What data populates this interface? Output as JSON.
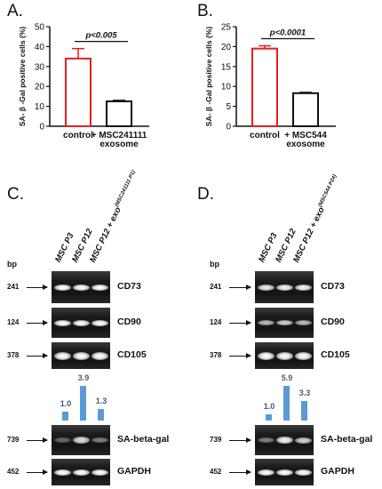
{
  "panels": {
    "a": {
      "label": "A.",
      "pvalue": "p<0.005",
      "ylabel": "SA- β -Gal positive cells (%)",
      "chart_data": {
        "type": "bar",
        "categories": [
          "control",
          "+ MSC241111 exosome"
        ],
        "category_lines": [
          [
            "control"
          ],
          [
            "+ MSC241111",
            "exosome"
          ]
        ],
        "values": [
          34,
          12.5
        ],
        "error_upper": [
          39,
          13
        ],
        "ylim": [
          0,
          50
        ],
        "yticks": [
          0,
          10,
          20,
          30,
          40,
          50
        ],
        "bar_edges": [
          "#e02020",
          "#111111"
        ]
      }
    },
    "b": {
      "label": "B.",
      "pvalue": "p<0.0001",
      "ylabel": "SA- β -Gal positive cells (%)",
      "chart_data": {
        "type": "bar",
        "categories": [
          "control",
          "+ MSC544 exosome"
        ],
        "category_lines": [
          [
            "control"
          ],
          [
            "+ MSC544",
            "exosome"
          ]
        ],
        "values": [
          19.5,
          8.3
        ],
        "error_upper": [
          20.2,
          8.5
        ],
        "ylim": [
          0,
          25
        ],
        "yticks": [
          0,
          5,
          10,
          15,
          20,
          25
        ],
        "bar_edges": [
          "#e02020",
          "#111111"
        ]
      }
    },
    "c": {
      "label": "C.",
      "bp_label": "bp",
      "lanes": [
        {
          "text": "MSC P3",
          "sup": ""
        },
        {
          "text": "MSC P12",
          "sup": ""
        },
        {
          "text": "MSC P12 + exo",
          "sup": "(MSC241111 P1)"
        }
      ],
      "markers": [
        "241",
        "124",
        "378",
        "739",
        "452"
      ],
      "genes": [
        "CD73",
        "CD90",
        "CD105",
        "SA-beta-gal",
        "GAPDH"
      ],
      "quant": {
        "type": "bar",
        "labels": [
          "1.0",
          "3.9",
          "1.3"
        ],
        "values": [
          1.0,
          3.9,
          1.3
        ]
      }
    },
    "d": {
      "label": "D.",
      "bp_label": "bp",
      "lanes": [
        {
          "text": "MSC P3",
          "sup": ""
        },
        {
          "text": "MSC P12",
          "sup": ""
        },
        {
          "text": "MSC P12 + exo",
          "sup": "(MSC544 P24)"
        }
      ],
      "markers": [
        "241",
        "124",
        "378",
        "739",
        "452"
      ],
      "genes": [
        "CD73",
        "CD90",
        "CD105",
        "SA-beta-gal",
        "GAPDH"
      ],
      "quant": {
        "type": "bar",
        "labels": [
          "1.0",
          "5.9",
          "3.3"
        ],
        "values": [
          1.0,
          5.9,
          3.3
        ]
      }
    }
  }
}
